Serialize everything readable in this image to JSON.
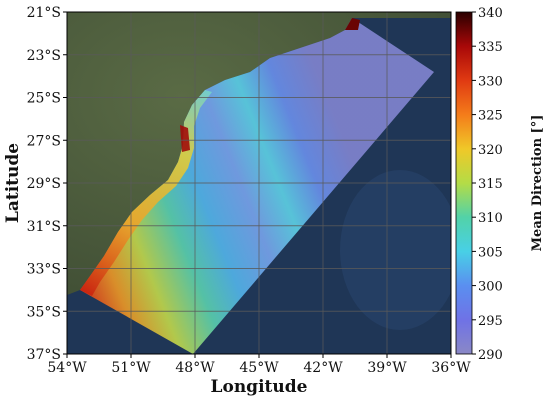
{
  "map": {
    "xlabel": "Longitude",
    "ylabel": "Latitude",
    "lon_range": [
      -54,
      -36
    ],
    "lat_range": [
      -37,
      -21
    ],
    "lon_ticks": [
      {
        "value": -54,
        "label": "54°W"
      },
      {
        "value": -51,
        "label": "51°W"
      },
      {
        "value": -48,
        "label": "48°W"
      },
      {
        "value": -45,
        "label": "45°W"
      },
      {
        "value": -42,
        "label": "42°W"
      },
      {
        "value": -39,
        "label": "39°W"
      },
      {
        "value": -36,
        "label": "36°W"
      }
    ],
    "lat_ticks": [
      {
        "value": -21,
        "label": "21°S"
      },
      {
        "value": -23,
        "label": "23°S"
      },
      {
        "value": -25,
        "label": "25°S"
      },
      {
        "value": -27,
        "label": "27°S"
      },
      {
        "value": -29,
        "label": "29°S"
      },
      {
        "value": -31,
        "label": "31°S"
      },
      {
        "value": -33,
        "label": "33°S"
      },
      {
        "value": -35,
        "label": "35°S"
      },
      {
        "value": -37,
        "label": "37°S"
      }
    ],
    "grid": true,
    "basemap": "satellite imagery (land and ocean)",
    "colors": {
      "land": "#47573a",
      "ocean": "#1f3656",
      "grid": "#5a5a5a"
    }
  },
  "colorbar": {
    "label": "Mean Direction [°]",
    "min": 290,
    "max": 340,
    "ticks": [
      {
        "value": 290,
        "label": "290"
      },
      {
        "value": 295,
        "label": "295"
      },
      {
        "value": 300,
        "label": "300"
      },
      {
        "value": 305,
        "label": "305"
      },
      {
        "value": 310,
        "label": "310"
      },
      {
        "value": 315,
        "label": "315"
      },
      {
        "value": 320,
        "label": "320"
      },
      {
        "value": 325,
        "label": "325"
      },
      {
        "value": 330,
        "label": "330"
      },
      {
        "value": 335,
        "label": "335"
      },
      {
        "value": 340,
        "label": "340"
      }
    ],
    "colormap": [
      "#2a0000",
      "#a80808",
      "#e03a12",
      "#f47c1a",
      "#f0c828",
      "#b4dc46",
      "#52d2a8",
      "#48d0e6",
      "#5a8ff0",
      "#6f72e6",
      "#8a88c6"
    ]
  }
}
